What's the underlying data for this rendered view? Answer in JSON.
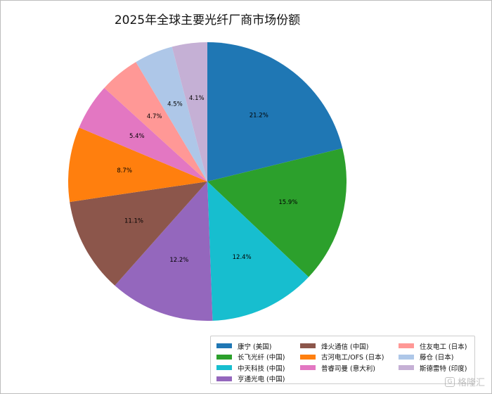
{
  "chart_data": {
    "type": "pie",
    "title": "2025年全球主要光纤厂商市场份额",
    "start_angle_deg": 90,
    "direction": "clockwise",
    "legend_position": "lower-right",
    "slices": [
      {
        "label": "康宁 (美国)",
        "value": 21.2,
        "display": "21.2%",
        "color": "#1f77b4"
      },
      {
        "label": "长飞光纤 (中国)",
        "value": 15.9,
        "display": "15.9%",
        "color": "#2ca02c"
      },
      {
        "label": "中天科技 (中国)",
        "value": 12.4,
        "display": "12.4%",
        "color": "#17becf"
      },
      {
        "label": "亨通光电 (中国)",
        "value": 12.2,
        "display": "12.2%",
        "color": "#9467bd"
      },
      {
        "label": "烽火通信 (中国)",
        "value": 11.1,
        "display": "11.1%",
        "color": "#8c564b"
      },
      {
        "label": "古河电工/OFS (日本)",
        "value": 8.7,
        "display": "8.7%",
        "color": "#ff7f0e"
      },
      {
        "label": "普睿司曼 (意大利)",
        "value": 5.4,
        "display": "5.4%",
        "color": "#e377c2"
      },
      {
        "label": "住友电工 (日本)",
        "value": 4.7,
        "display": "4.7%",
        "color": "#ff9896"
      },
      {
        "label": "藤仓 (日本)",
        "value": 4.5,
        "display": "4.5%",
        "color": "#aec7e8"
      },
      {
        "label": "斯德雷特 (印度)",
        "value": 4.1,
        "display": "4.1%",
        "color": "#c5b0d5"
      }
    ],
    "legend_columns": [
      [
        0,
        1,
        2,
        3
      ],
      [
        4,
        5,
        6
      ],
      [
        7,
        8,
        9
      ]
    ]
  },
  "watermark": {
    "icon_text": "G",
    "text": "格隆汇"
  }
}
